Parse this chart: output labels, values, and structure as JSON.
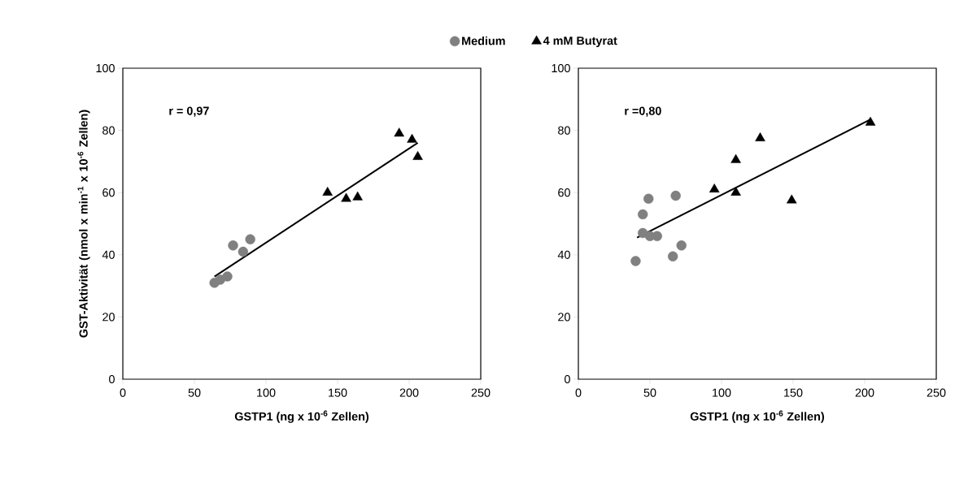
{
  "chart_data": [
    {
      "type": "scatter",
      "xlabel": "GSTP1 (ng x 10$^{-6}$ Zellen)",
      "ylabel": "GST-Aktivität (nmol x min$^{-1}$ x 10$^{-6}$ Zellen)",
      "annotations": [
        "r = 0,97"
      ],
      "xlim": [
        0,
        250
      ],
      "ylim": [
        0,
        100
      ],
      "xticks": [
        0,
        50,
        100,
        150,
        200,
        250
      ],
      "yticks": [
        0,
        20,
        40,
        60,
        80,
        100
      ],
      "legend": "top",
      "series": [
        {
          "name": "Medium",
          "color": "#808080",
          "marker": "circle",
          "x": [
            64,
            68,
            73,
            77,
            84,
            89
          ],
          "values": [
            31,
            32,
            33,
            43,
            41,
            45
          ]
        },
        {
          "name": "4 mM Butyrat",
          "color": "#000000",
          "marker": "triangle",
          "x": [
            143,
            156,
            164,
            193,
            202,
            206
          ],
          "values": [
            60,
            58,
            58.5,
            79,
            77,
            71.5
          ]
        },
        {
          "type": "line",
          "color": "#000000",
          "marker": "none",
          "x": [
            64,
            206
          ],
          "values": [
            33,
            76
          ]
        }
      ]
    },
    {
      "type": "scatter",
      "xlabel": "GSTP1 (ng x 10$^{-6}$ Zellen)",
      "annotations": [
        "r =0,80"
      ],
      "xlim": [
        0,
        250
      ],
      "ylim": [
        0,
        100
      ],
      "xticks": [
        0,
        50,
        100,
        150,
        200,
        250
      ],
      "yticks": [
        0,
        20,
        40,
        60,
        80,
        100
      ],
      "series": [
        {
          "color": "#808080",
          "marker": "circle",
          "x": [
            40,
            45,
            45,
            49,
            50,
            55,
            66,
            68,
            72
          ],
          "values": [
            38,
            53,
            47,
            58,
            46,
            46,
            39.5,
            59,
            43
          ]
        },
        {
          "color": "#000000",
          "marker": "triangle",
          "x": [
            95,
            110,
            110,
            127,
            149,
            204
          ],
          "values": [
            61,
            70.5,
            60,
            77.5,
            57.5,
            82.5
          ]
        },
        {
          "type": "line",
          "color": "#000000",
          "marker": "none",
          "x": [
            41,
            204
          ],
          "values": [
            45.5,
            83.5
          ]
        }
      ]
    }
  ]
}
